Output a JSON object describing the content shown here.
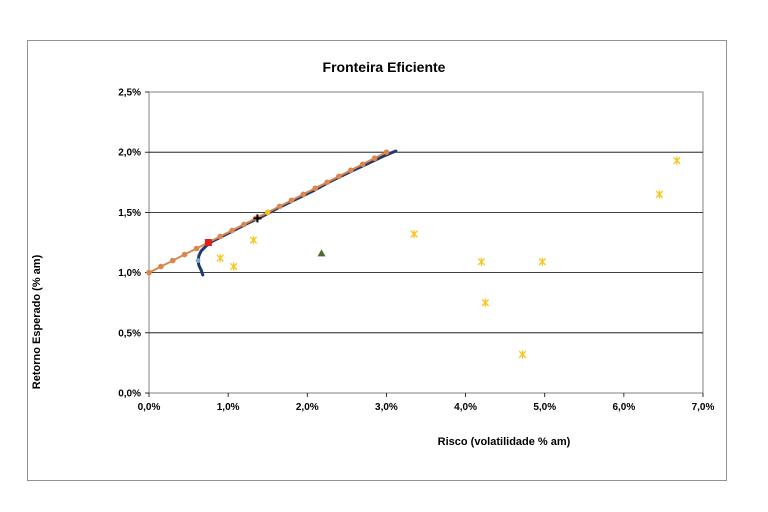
{
  "chart_data": {
    "type": "scatter",
    "title": "Fronteira Eficiente",
    "xlabel": "Risco (volatilidade % am)",
    "ylabel": "Retorno Esperado (% am)",
    "xlim": [
      0,
      7
    ],
    "ylim": [
      0,
      2.5
    ],
    "x_ticks": [
      "0,0%",
      "1,0%",
      "2,0%",
      "3,0%",
      "4,0%",
      "5,0%",
      "6,0%",
      "7,0%"
    ],
    "y_ticks": [
      "0,0%",
      "0,5%",
      "1,0%",
      "1,5%",
      "2,0%",
      "2,5%"
    ],
    "grid": "horizontal",
    "legend": "none",
    "colors": {
      "frontier": "#1f3a6e",
      "capital_line": "#d9874f",
      "assets": "#f5c518",
      "tangent": "#f5c518",
      "min_variance": "#e0201c",
      "portfolio_cross": "#000000",
      "triangle": "#4f6b2a",
      "min_point": "#7fa7c6"
    },
    "series": [
      {
        "kind": "frontier",
        "x": [
          0.68,
          0.66,
          0.63,
          0.62,
          0.63,
          0.66,
          0.72,
          0.8,
          0.92,
          1.07,
          1.25,
          1.44,
          1.64,
          1.86,
          2.08,
          2.3,
          2.52,
          2.75,
          2.97,
          3.12
        ],
        "y": [
          0.98,
          1.02,
          1.06,
          1.1,
          1.14,
          1.18,
          1.22,
          1.26,
          1.3,
          1.35,
          1.41,
          1.47,
          1.54,
          1.61,
          1.68,
          1.76,
          1.83,
          1.9,
          1.97,
          2.01
        ]
      },
      {
        "kind": "capital_line",
        "x": [
          0.0,
          0.15,
          0.3,
          0.45,
          0.6,
          0.75,
          0.9,
          1.05,
          1.2,
          1.35,
          1.5,
          1.65,
          1.8,
          1.95,
          2.1,
          2.25,
          2.4,
          2.55,
          2.7,
          2.85,
          3.0
        ],
        "y": [
          1.0,
          1.05,
          1.1,
          1.15,
          1.2,
          1.25,
          1.3,
          1.35,
          1.4,
          1.45,
          1.5,
          1.55,
          1.6,
          1.65,
          1.7,
          1.75,
          1.8,
          1.85,
          1.9,
          1.95,
          2.0
        ]
      },
      {
        "kind": "assets",
        "x": [
          0.9,
          1.07,
          1.32,
          3.35,
          4.2,
          4.25,
          4.72,
          4.97,
          6.45,
          6.67
        ],
        "y": [
          1.12,
          1.05,
          1.27,
          1.32,
          1.09,
          0.75,
          0.32,
          1.09,
          1.65,
          1.93
        ]
      },
      {
        "kind": "min_variance",
        "x": [
          0.75
        ],
        "y": [
          1.25
        ]
      },
      {
        "kind": "portfolio_cross",
        "x": [
          1.37
        ],
        "y": [
          1.45
        ]
      },
      {
        "kind": "tangent",
        "x": [
          1.5
        ],
        "y": [
          1.5
        ]
      },
      {
        "kind": "triangle",
        "x": [
          2.18
        ],
        "y": [
          1.16
        ]
      },
      {
        "kind": "min_point",
        "x": [
          0.62
        ],
        "y": [
          1.1
        ]
      }
    ]
  }
}
